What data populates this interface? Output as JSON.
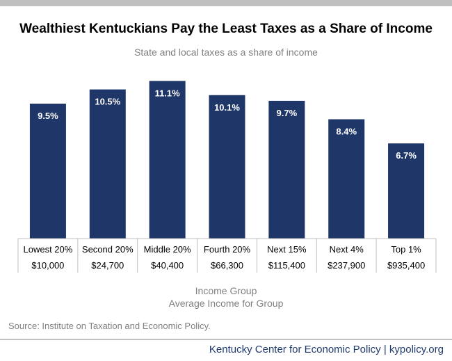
{
  "title": "Wealthiest Kentuckians Pay the Least Taxes as a Share of Income",
  "subtitle": "State and local taxes as a share of income",
  "xlabel_line1": "Income Group",
  "xlabel_line2": "Average Income for Group",
  "source": "Source: Institute on Taxation and Economic Policy.",
  "footer": "Kentucky Center for Economic Policy | kypolicy.org",
  "colors": {
    "bar": "#1f3668",
    "bar_label": "#ffffff",
    "axis": "#bfbfbf"
  },
  "chart_data": {
    "type": "bar",
    "categories": [
      "Lowest 20%",
      "Second 20%",
      "Middle 20%",
      "Fourth 20%",
      "Next 15%",
      "Next 4%",
      "Top 1%"
    ],
    "average_incomes": [
      "$10,000",
      "$24,700",
      "$40,400",
      "$66,300",
      "$115,400",
      "$237,900",
      "$935,400"
    ],
    "values": [
      9.5,
      10.5,
      11.1,
      10.1,
      9.7,
      8.4,
      6.7
    ],
    "data_labels": [
      "9.5%",
      "10.5%",
      "11.1%",
      "10.1%",
      "9.7%",
      "8.4%",
      "6.7%"
    ],
    "ylim": [
      0,
      11.9
    ],
    "grid": false
  }
}
